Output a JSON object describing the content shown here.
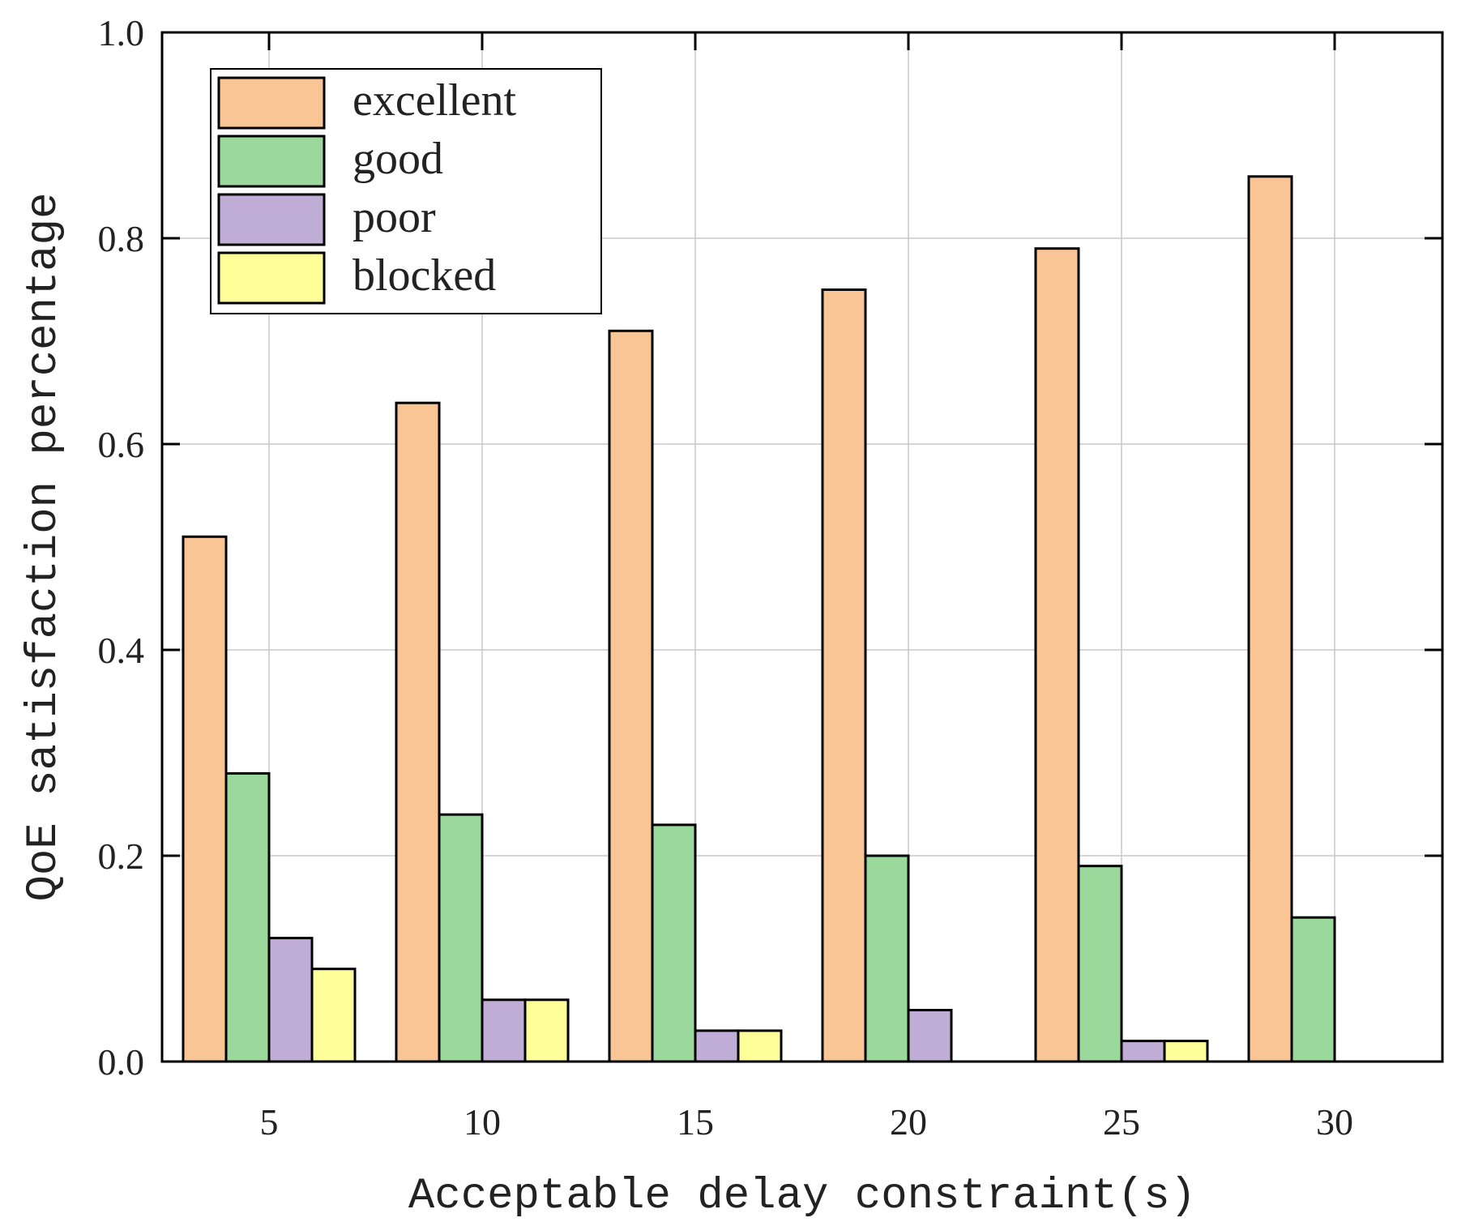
{
  "chart_data": {
    "type": "bar",
    "title": "",
    "xlabel": "Acceptable delay constraint(s)",
    "ylabel": "QoE satisfaction percentage",
    "categories": [
      "5",
      "10",
      "15",
      "20",
      "25",
      "30"
    ],
    "ylim": [
      0.0,
      1.0
    ],
    "yticks": [
      "0.0",
      "0.2",
      "0.4",
      "0.6",
      "0.8",
      "1.0"
    ],
    "grid": true,
    "legend_position": "top-left",
    "series": [
      {
        "name": "excellent",
        "color": "#f9c594",
        "values": [
          0.51,
          0.64,
          0.71,
          0.75,
          0.79,
          0.86
        ]
      },
      {
        "name": "good",
        "color": "#9ad89c",
        "values": [
          0.28,
          0.24,
          0.23,
          0.2,
          0.19,
          0.14
        ]
      },
      {
        "name": "poor",
        "color": "#c0aed6",
        "values": [
          0.12,
          0.06,
          0.03,
          0.05,
          0.02,
          0.0
        ]
      },
      {
        "name": "blocked",
        "color": "#ffff99",
        "values": [
          0.09,
          0.06,
          0.03,
          0.0,
          0.02,
          0.0
        ]
      }
    ]
  }
}
